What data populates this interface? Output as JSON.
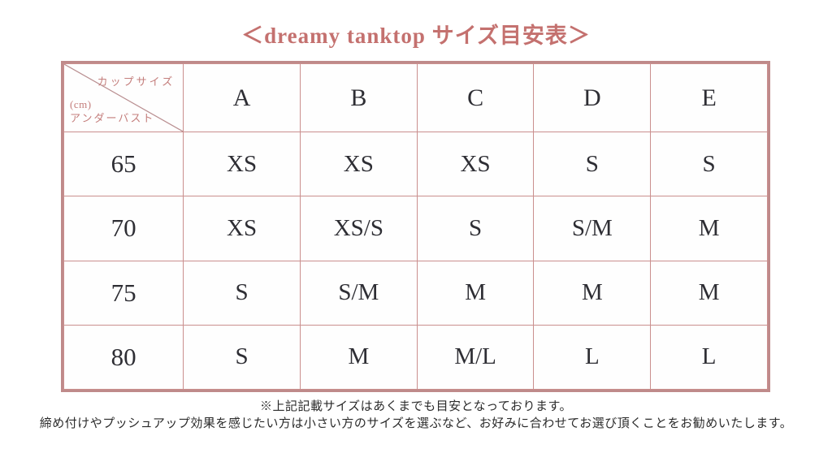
{
  "title": "＜dreamy tanktop サイズ目安表＞",
  "corner": {
    "top_label": "カップサイズ",
    "unit": "(cm)",
    "bottom_label": "アンダーバスト"
  },
  "chart_data": {
    "type": "table",
    "title": "＜dreamy tanktop サイズ目安表＞",
    "column_axis_label": "カップサイズ",
    "row_axis_label": "アンダーバスト (cm)",
    "columns": [
      "A",
      "B",
      "C",
      "D",
      "E"
    ],
    "row_headers": [
      "65",
      "70",
      "75",
      "80"
    ],
    "rows": [
      [
        "XS",
        "XS",
        "XS",
        "S",
        "S"
      ],
      [
        "XS",
        "XS/S",
        "S",
        "S/M",
        "M"
      ],
      [
        "S",
        "S/M",
        "M",
        "M",
        "M"
      ],
      [
        "S",
        "M",
        "M/L",
        "L",
        "L"
      ]
    ]
  },
  "notes": {
    "line1": "※上記記載サイズはあくまでも目安となっております。",
    "line2": "締め付けやプッシュアップ効果を感じたい方は小さい方のサイズを選ぶなど、お好みに合わせてお選び頂くことをお勧めいたします。"
  },
  "colors": {
    "accent_rose": "#c4716f",
    "outer_border": "#bf8a8a",
    "grid_line": "#ca8f8e",
    "diagonal_line": "#b98e90",
    "cell_text": "#2e2e34",
    "note_text": "#2b2b2b",
    "background": "#ffffff"
  }
}
